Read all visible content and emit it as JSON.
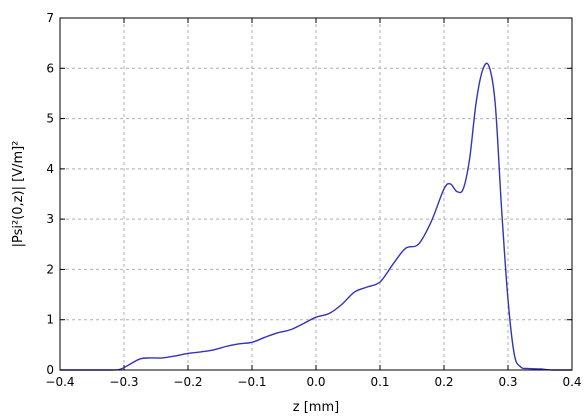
{
  "chart_data": {
    "type": "line",
    "title": "",
    "xlabel": "z [mm]",
    "ylabel": "|Psi²(0,z)| [V/m]²",
    "xlim": [
      -0.4,
      0.4
    ],
    "ylim": [
      0,
      7
    ],
    "x_ticks": [
      -0.4,
      -0.3,
      -0.2,
      -0.1,
      0.0,
      0.1,
      0.2,
      0.3,
      0.4
    ],
    "x_tick_labels": [
      "−0.4",
      "−0.3",
      "−0.2",
      "−0.1",
      "0.0",
      "0.1",
      "0.2",
      "0.3",
      "0.4"
    ],
    "y_ticks": [
      0,
      1,
      2,
      3,
      4,
      5,
      6,
      7
    ],
    "y_tick_labels": [
      "0",
      "1",
      "2",
      "3",
      "4",
      "5",
      "6",
      "7"
    ],
    "grid": true,
    "legend": "none",
    "series": [
      {
        "color": "#3333bb",
        "x": [
          -0.4,
          -0.32,
          -0.305,
          -0.29,
          -0.275,
          -0.26,
          -0.24,
          -0.22,
          -0.2,
          -0.18,
          -0.16,
          -0.14,
          -0.12,
          -0.1,
          -0.08,
          -0.06,
          -0.04,
          -0.02,
          0.0,
          0.02,
          0.04,
          0.06,
          0.08,
          0.1,
          0.12,
          0.14,
          0.16,
          0.18,
          0.2,
          0.21,
          0.22,
          0.23,
          0.24,
          0.25,
          0.26,
          0.27,
          0.28,
          0.29,
          0.3,
          0.31,
          0.32,
          0.33,
          0.35,
          0.37,
          0.4
        ],
        "y": [
          0.0,
          0.0,
          0.02,
          0.12,
          0.22,
          0.24,
          0.24,
          0.28,
          0.33,
          0.36,
          0.4,
          0.47,
          0.52,
          0.55,
          0.65,
          0.74,
          0.8,
          0.92,
          1.05,
          1.12,
          1.3,
          1.55,
          1.65,
          1.75,
          2.1,
          2.42,
          2.5,
          2.95,
          3.6,
          3.7,
          3.55,
          3.6,
          4.2,
          5.3,
          5.95,
          6.05,
          5.3,
          3.2,
          1.4,
          0.3,
          0.06,
          0.03,
          0.02,
          0.0,
          0.0
        ]
      }
    ]
  }
}
